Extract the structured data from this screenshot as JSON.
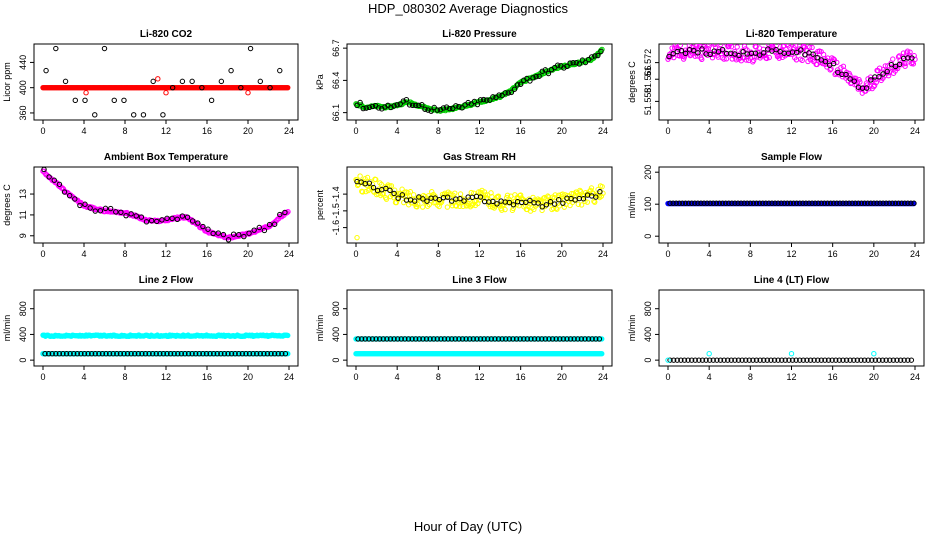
{
  "figure": {
    "title": "HDP_080302  Average Diagnostics",
    "xlabel": "Hour of Day (UTC)"
  },
  "colors": {
    "black": "#000000",
    "red": "#ff0000",
    "green": "#00cc00",
    "magenta": "#ff00ff",
    "yellow": "#ffff00",
    "blue": "#0000ff",
    "cyan": "#00ffff",
    "axis": "#000000"
  },
  "chart_data": [
    {
      "type": "scatter",
      "title": "Li-820 CO2",
      "ylabel": "Licor ppm",
      "xlim": [
        0,
        24
      ],
      "ylim": [
        352,
        466
      ],
      "xticks": [
        "0",
        "4",
        "8",
        "12",
        "16",
        "20",
        "24"
      ],
      "yticks": [
        {
          "value": 360,
          "label": "360"
        },
        {
          "value": 400,
          "label": "400"
        },
        {
          "value": 440,
          "label": "440"
        }
      ],
      "series": [
        {
          "name": "red band",
          "color": "red",
          "kind": "band",
          "x": [
            0,
            24
          ],
          "y": [
            400,
            400
          ]
        },
        {
          "name": "black levels",
          "color": "black",
          "kind": "levels",
          "levels": [
            357,
            380,
            400,
            410,
            427,
            462
          ]
        },
        {
          "name": "red outliers",
          "color": "red",
          "kind": "points",
          "x": [
            4.2,
            11.2,
            12.0,
            20.0
          ],
          "y": [
            392,
            414,
            392,
            392
          ]
        }
      ]
    },
    {
      "type": "scatter",
      "title": "Li-820 Pressure",
      "ylabel": "kPa",
      "xlim": [
        0,
        24
      ],
      "ylim": [
        66.05,
        66.72
      ],
      "xticks": [
        "0",
        "4",
        "8",
        "12",
        "16",
        "20",
        "24"
      ],
      "yticks": [
        {
          "value": 66.1,
          "label": "66.1"
        },
        {
          "value": 66.4,
          "label": "66.4"
        },
        {
          "value": 66.7,
          "label": "66.7"
        }
      ],
      "series": [
        {
          "name": "green trace",
          "color": "green",
          "kind": "curve",
          "x": [
            0,
            1,
            2,
            3,
            4,
            5,
            6,
            7,
            8,
            9,
            10,
            11,
            12,
            13,
            14,
            15,
            16,
            17,
            18,
            19,
            20,
            21,
            22,
            23,
            24
          ],
          "y": [
            66.18,
            66.15,
            66.16,
            66.15,
            66.17,
            66.2,
            66.17,
            66.14,
            66.12,
            66.13,
            66.15,
            66.17,
            66.2,
            66.22,
            66.25,
            66.3,
            66.38,
            66.42,
            66.46,
            66.5,
            66.53,
            66.55,
            66.57,
            66.6,
            66.7
          ]
        },
        {
          "name": "black points",
          "color": "black",
          "kind": "sampled-curve",
          "step": 0.3
        }
      ]
    },
    {
      "type": "scatter",
      "title": "Li-820 Temperature",
      "ylabel": "degrees C",
      "xlim": [
        0,
        24
      ],
      "ylim": [
        51.552,
        51.578
      ],
      "xticks": [
        "0",
        "4",
        "8",
        "12",
        "16",
        "20",
        "24"
      ],
      "yticks": [
        {
          "value": 51.558,
          "label": "51.558"
        },
        {
          "value": 51.566,
          "label": "51.566"
        },
        {
          "value": 51.572,
          "label": "51.572"
        }
      ],
      "series": [
        {
          "name": "magenta trace",
          "color": "magenta",
          "kind": "noisy-curve",
          "x": [
            0,
            2,
            4,
            6,
            8,
            10,
            12,
            14,
            15,
            16,
            17,
            18,
            19,
            20,
            21,
            22,
            23,
            24
          ],
          "y": [
            51.575,
            51.576,
            51.576,
            51.576,
            51.575,
            51.576,
            51.576,
            51.575,
            51.573,
            51.571,
            51.568,
            51.565,
            51.562,
            51.566,
            51.569,
            51.571,
            51.573,
            51.574
          ]
        },
        {
          "name": "black points",
          "color": "black",
          "kind": "sampled-curve",
          "step": 0.4
        }
      ]
    },
    {
      "type": "scatter",
      "title": "Ambient Box Temperature",
      "ylabel": "degrees C",
      "xlim": [
        0,
        24
      ],
      "ylim": [
        8.5,
        15.4
      ],
      "xticks": [
        "0",
        "4",
        "8",
        "12",
        "16",
        "20",
        "24"
      ],
      "yticks": [
        {
          "value": 9,
          "label": "9"
        },
        {
          "value": 11,
          "label": "11"
        },
        {
          "value": 13,
          "label": "13"
        }
      ],
      "series": [
        {
          "name": "magenta trace",
          "color": "magenta",
          "kind": "curve",
          "x": [
            0,
            1,
            2,
            3,
            4,
            5,
            6,
            7,
            8,
            9,
            10,
            11,
            12,
            13,
            14,
            15,
            16,
            17,
            18,
            19,
            20,
            21,
            22,
            23,
            24
          ],
          "y": [
            15.2,
            14.3,
            13.4,
            12.6,
            11.9,
            11.6,
            11.4,
            11.3,
            11.2,
            10.9,
            10.5,
            10.4,
            10.5,
            10.7,
            10.8,
            10.1,
            9.4,
            9.1,
            8.8,
            9.0,
            9.2,
            9.5,
            9.9,
            10.7,
            11.4
          ]
        },
        {
          "name": "black points",
          "color": "black",
          "kind": "sampled-curve",
          "step": 0.5
        }
      ]
    },
    {
      "type": "scatter",
      "title": "Gas Stream RH",
      "ylabel": "percent",
      "xlim": [
        0,
        24
      ],
      "ylim": [
        -1.68,
        -1.25
      ],
      "xticks": [
        "0",
        "4",
        "8",
        "12",
        "16",
        "20",
        "24"
      ],
      "yticks": [
        {
          "value": -1.6,
          "label": "-1.6"
        },
        {
          "value": -1.5,
          "label": "-1.5"
        },
        {
          "value": -1.4,
          "label": "-1.4"
        }
      ],
      "series": [
        {
          "name": "yellow trace",
          "color": "yellow",
          "kind": "noisy-curve",
          "x": [
            0,
            2,
            4,
            6,
            8,
            10,
            12,
            14,
            16,
            18,
            20,
            22,
            24
          ],
          "y": [
            -1.33,
            -1.36,
            -1.41,
            -1.43,
            -1.43,
            -1.44,
            -1.42,
            -1.45,
            -1.45,
            -1.46,
            -1.44,
            -1.42,
            -1.39
          ]
        },
        {
          "name": "black points",
          "color": "black",
          "kind": "sampled-curve",
          "step": 0.4
        },
        {
          "name": "yellow outlier",
          "color": "yellow",
          "kind": "points",
          "x": [
            0.1
          ],
          "y": [
            -1.66
          ]
        }
      ]
    },
    {
      "type": "scatter",
      "title": "Sample Flow",
      "ylabel": "ml/min",
      "xlim": [
        0,
        24
      ],
      "ylim": [
        -15,
        210
      ],
      "xticks": [
        "0",
        "4",
        "8",
        "12",
        "16",
        "20",
        "24"
      ],
      "yticks": [
        {
          "value": 0,
          "label": "0"
        },
        {
          "value": 100,
          "label": "100"
        },
        {
          "value": 200,
          "label": "200"
        }
      ],
      "series": [
        {
          "name": "blue band",
          "color": "blue",
          "kind": "band",
          "x": [
            0,
            24
          ],
          "y": [
            102,
            102
          ]
        },
        {
          "name": "black points",
          "color": "black",
          "kind": "level-points",
          "y": 103,
          "step": 0.3
        }
      ]
    },
    {
      "type": "scatter",
      "title": "Line 2 Flow",
      "ylabel": "ml/min",
      "xlim": [
        0,
        24
      ],
      "ylim": [
        -60,
        1060
      ],
      "xticks": [
        "0",
        "4",
        "8",
        "12",
        "16",
        "20",
        "24"
      ],
      "yticks": [
        {
          "value": 0,
          "label": "0"
        },
        {
          "value": 400,
          "label": "400"
        },
        {
          "value": 800,
          "label": "800"
        }
      ],
      "series": [
        {
          "name": "cyan upper band",
          "color": "cyan",
          "kind": "band",
          "x": [
            0,
            24
          ],
          "y": [
            370,
            390
          ]
        },
        {
          "name": "cyan lower band",
          "color": "cyan",
          "kind": "band",
          "x": [
            0,
            24
          ],
          "y": [
            100,
            100
          ]
        },
        {
          "name": "black points",
          "color": "black",
          "kind": "level-points",
          "y": 100,
          "step": 0.35
        }
      ]
    },
    {
      "type": "scatter",
      "title": "Line 3 Flow",
      "ylabel": "ml/min",
      "xlim": [
        0,
        24
      ],
      "ylim": [
        -60,
        1060
      ],
      "xticks": [
        "0",
        "4",
        "8",
        "12",
        "16",
        "20",
        "24"
      ],
      "yticks": [
        {
          "value": 0,
          "label": "0"
        },
        {
          "value": 400,
          "label": "400"
        },
        {
          "value": 800,
          "label": "800"
        }
      ],
      "series": [
        {
          "name": "cyan lower band",
          "color": "cyan",
          "kind": "band",
          "x": [
            0,
            24
          ],
          "y": [
            100,
            100
          ]
        },
        {
          "name": "cyan upper band",
          "color": "cyan",
          "kind": "band",
          "x": [
            0,
            24
          ],
          "y": [
            330,
            330
          ]
        },
        {
          "name": "black points",
          "color": "black",
          "kind": "level-points",
          "y": 330,
          "step": 0.35
        }
      ]
    },
    {
      "type": "scatter",
      "title": "Line 4 (LT) Flow",
      "ylabel": "ml/min",
      "xlim": [
        0,
        24
      ],
      "ylim": [
        -60,
        1060
      ],
      "xticks": [
        "0",
        "4",
        "8",
        "12",
        "16",
        "20",
        "24"
      ],
      "yticks": [
        {
          "value": 0,
          "label": "0"
        },
        {
          "value": 400,
          "label": "400"
        },
        {
          "value": 800,
          "label": "800"
        }
      ],
      "series": [
        {
          "name": "black points",
          "color": "black",
          "kind": "level-points",
          "y": 0,
          "step": 0.35
        },
        {
          "name": "cyan points",
          "color": "cyan",
          "kind": "points",
          "x": [
            0,
            4,
            12,
            20
          ],
          "y": [
            0,
            100,
            100,
            100
          ]
        }
      ]
    }
  ]
}
